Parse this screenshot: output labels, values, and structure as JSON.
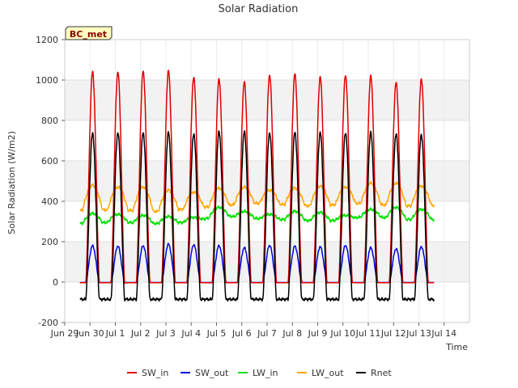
{
  "chart_data": {
    "type": "line",
    "title": "Solar Radiation",
    "xlabel": "Time",
    "ylabel": "Solar Radiation (W/m2)",
    "badge": "BC_met",
    "ylim": [
      -200,
      1200
    ],
    "yticks": [
      -200,
      0,
      200,
      400,
      600,
      800,
      1000,
      1200
    ],
    "xlim": [
      0,
      16
    ],
    "xticks": [
      {
        "x": 0,
        "label": "Jun 29"
      },
      {
        "x": 1,
        "label": "Jun 30"
      },
      {
        "x": 2,
        "label": "Jul 1"
      },
      {
        "x": 3,
        "label": "Jul 2"
      },
      {
        "x": 4,
        "label": "Jul 3"
      },
      {
        "x": 5,
        "label": "Jul 4"
      },
      {
        "x": 6,
        "label": "Jul 5"
      },
      {
        "x": 7,
        "label": "Jul 6"
      },
      {
        "x": 8,
        "label": "Jul 7"
      },
      {
        "x": 9,
        "label": "Jul 8"
      },
      {
        "x": 10,
        "label": "Jul 9"
      },
      {
        "x": 11,
        "label": "Jul 10"
      },
      {
        "x": 12,
        "label": "Jul 11"
      },
      {
        "x": 13,
        "label": "Jul 12"
      },
      {
        "x": 14,
        "label": "Jul 13"
      },
      {
        "x": 15,
        "label": "Jul 14"
      }
    ],
    "x_start": 0.6,
    "x_end": 14.6,
    "day_centers": [
      1.1,
      2.1,
      3.1,
      4.1,
      5.1,
      6.1,
      7.1,
      8.1,
      9.1,
      10.1,
      11.1,
      12.1,
      13.1,
      14.1
    ],
    "grid": true,
    "shaded_bands": true,
    "legend_position": "bottom",
    "series": [
      {
        "name": "SW_in",
        "color": "#e00000",
        "peaks": [
          1040,
          1040,
          1045,
          1045,
          1015,
          1005,
          990,
          1025,
          1030,
          1015,
          1025,
          1020,
          990,
          1005
        ]
      },
      {
        "name": "SW_out",
        "color": "#0000e0",
        "peaks": [
          180,
          178,
          180,
          188,
          185,
          180,
          170,
          182,
          178,
          175,
          182,
          170,
          165,
          175
        ]
      },
      {
        "name": "LW_in",
        "color": "#00e000",
        "day_levels": [
          340,
          335,
          330,
          325,
          320,
          370,
          350,
          335,
          350,
          345,
          330,
          360,
          370,
          360
        ],
        "night_levels": [
          290,
          300,
          290,
          290,
          300,
          330,
          320,
          310,
          310,
          300,
          310,
          330,
          310,
          310
        ]
      },
      {
        "name": "LW_out",
        "color": "#ffa500",
        "day_levels": [
          480,
          470,
          470,
          455,
          445,
          465,
          470,
          455,
          465,
          475,
          470,
          490,
          490,
          475
        ],
        "night_levels": [
          355,
          360,
          350,
          350,
          370,
          375,
          390,
          390,
          380,
          375,
          390,
          390,
          375,
          380
        ]
      },
      {
        "name": "Rnet",
        "color": "#000000",
        "peaks": [
          735,
          740,
          740,
          740,
          735,
          745,
          745,
          740,
          740,
          740,
          740,
          740,
          735,
          730
        ],
        "night_level": -85
      }
    ]
  }
}
